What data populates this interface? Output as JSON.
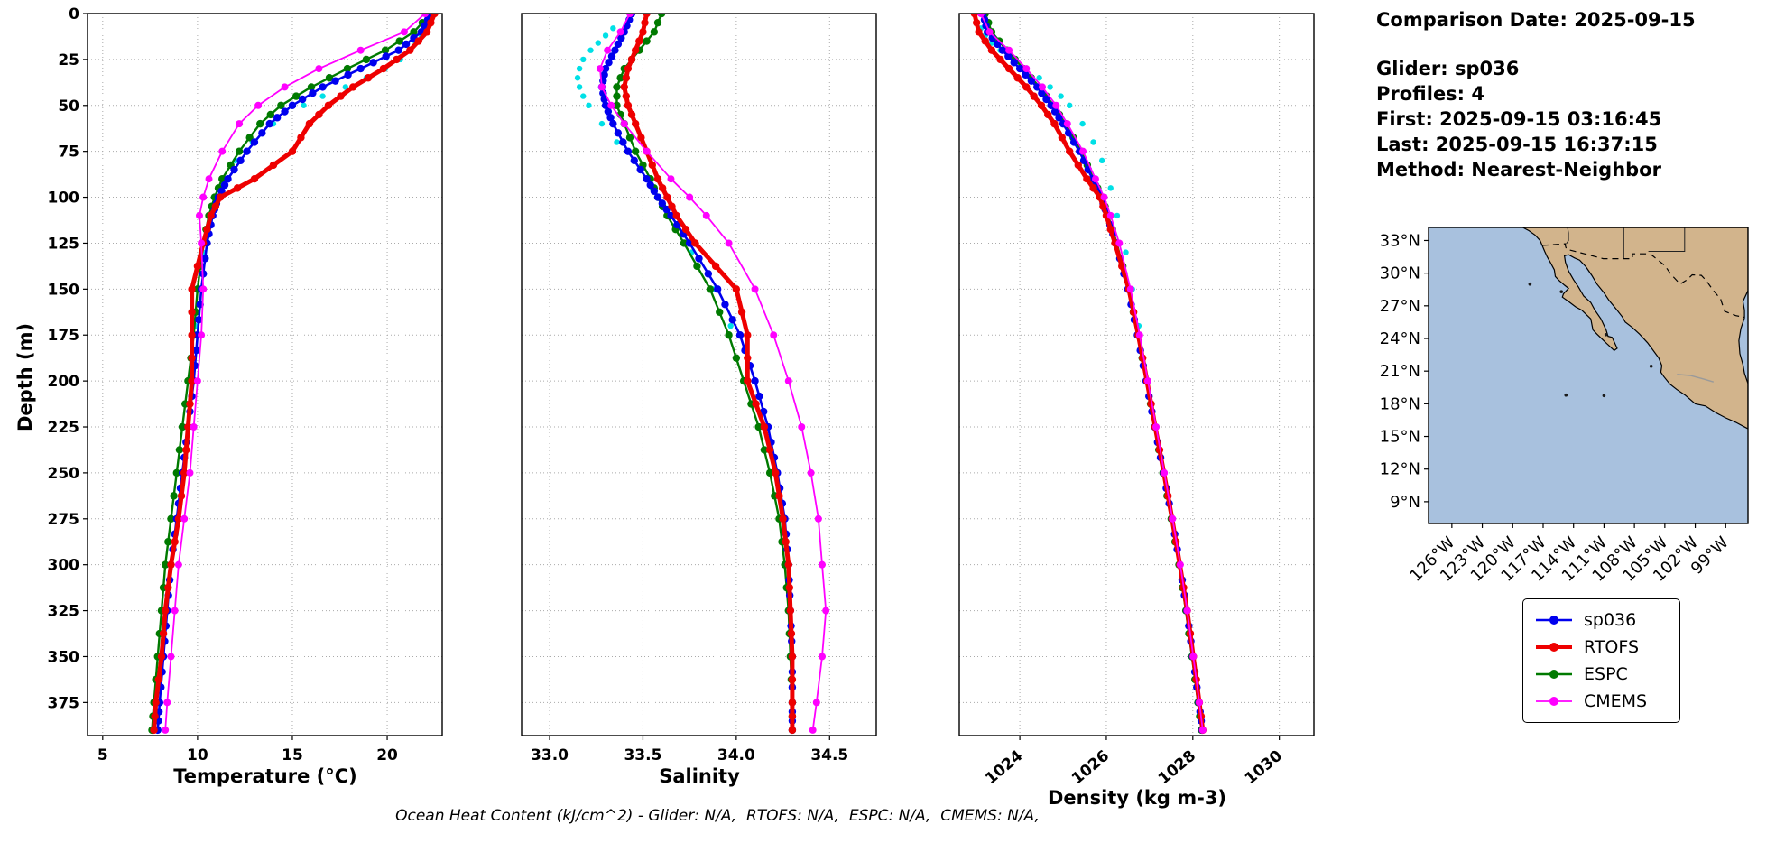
{
  "info_panel": {
    "comparison_date": "Comparison Date: 2025-09-15",
    "glider": "Glider: sp036",
    "profiles": "Profiles: 4",
    "first": "First: 2025-09-15 03:16:45",
    "last": "Last: 2025-09-15 16:37:15",
    "method": "Method: Nearest-Neighbor"
  },
  "footer_note": "Ocean Heat Content (kJ/cm^2) - Glider: N/A,  RTOFS: N/A,  ESPC: N/A,  CMEMS: N/A,",
  "legend": {
    "entries": [
      {
        "label": "sp036",
        "color": "#0000ee"
      },
      {
        "label": "RTOFS",
        "color": "#ee0000"
      },
      {
        "label": "ESPC",
        "color": "#007a00"
      },
      {
        "label": "CMEMS",
        "color": "#ff00ff"
      }
    ]
  },
  "chart_data": {
    "type": "line",
    "ylabel": "Depth (m)",
    "ylim": [
      0,
      393
    ],
    "yticks": [
      0,
      25,
      50,
      75,
      100,
      125,
      150,
      175,
      200,
      225,
      250,
      275,
      300,
      325,
      350,
      375
    ],
    "depths": [
      0,
      10,
      20,
      30,
      40,
      50,
      60,
      75,
      90,
      100,
      110,
      125,
      150,
      175,
      200,
      225,
      250,
      275,
      300,
      325,
      350,
      375,
      390
    ],
    "series_order": [
      "ESPC",
      "sp036",
      "RTOFS",
      "CMEMS"
    ],
    "scatter_color": "#00e0e6",
    "series_styles": {
      "sp036": {
        "color": "#0000ee",
        "width": 2.6,
        "marker": 4.2,
        "subdiv": 3
      },
      "RTOFS": {
        "color": "#ee0000",
        "width": 5.0,
        "marker": 4.2,
        "subdiv": 2
      },
      "ESPC": {
        "color": "#007a00",
        "width": 2.4,
        "marker": 4.2,
        "subdiv": 2
      },
      "CMEMS": {
        "color": "#ff00ff",
        "width": 1.8,
        "marker": 4.0,
        "subdiv": 1
      }
    },
    "panels": [
      {
        "id": "temperature",
        "xlabel": "Temperature (°C)",
        "xlim": [
          4.2,
          22.9
        ],
        "xticks": [
          5,
          10,
          15,
          20
        ],
        "xtick_decimals": 0,
        "rotate_xticks": false,
        "series": {
          "sp036": [
            22.3,
            21.8,
            20.6,
            18.6,
            16.6,
            15.0,
            13.8,
            12.6,
            11.6,
            11.1,
            10.8,
            10.5,
            10.2,
            10.0,
            9.8,
            9.5,
            9.2,
            8.9,
            8.6,
            8.4,
            8.2,
            8.0,
            7.9
          ],
          "RTOFS": [
            22.5,
            22.1,
            21.2,
            19.8,
            18.2,
            16.9,
            15.9,
            15.0,
            13.0,
            11.2,
            10.7,
            10.3,
            9.7,
            9.7,
            9.7,
            9.5,
            9.3,
            9.0,
            8.6,
            8.3,
            8.1,
            7.8,
            7.7
          ],
          "ESPC": [
            22.3,
            21.4,
            19.9,
            17.9,
            16.0,
            14.4,
            13.3,
            12.2,
            11.3,
            10.9,
            10.6,
            10.3,
            10.0,
            9.8,
            9.5,
            9.2,
            8.9,
            8.6,
            8.3,
            8.1,
            7.9,
            7.7,
            7.6
          ],
          "CMEMS": [
            22.0,
            20.9,
            18.6,
            16.4,
            14.6,
            13.2,
            12.2,
            11.3,
            10.6,
            10.3,
            10.1,
            10.2,
            10.3,
            10.2,
            10.0,
            9.8,
            9.6,
            9.3,
            9.0,
            8.8,
            8.6,
            8.4,
            8.3
          ]
        },
        "scatter": {
          "name": "glider-raw",
          "depths": [
            8,
            12,
            16,
            20,
            25,
            30,
            35,
            40,
            45,
            50,
            60,
            70,
            80,
            95,
            110,
            130,
            150,
            170
          ],
          "values": [
            22.0,
            21.8,
            21.5,
            21.2,
            20.7,
            19.9,
            18.9,
            17.8,
            16.6,
            15.6,
            14.0,
            12.9,
            12.0,
            11.2,
            10.7,
            10.3,
            10.1,
            9.9
          ]
        }
      },
      {
        "id": "salinity",
        "xlabel": "Salinity",
        "xlim": [
          32.85,
          34.75
        ],
        "xticks": [
          33.0,
          33.5,
          34.0,
          34.5
        ],
        "xtick_decimals": 1,
        "rotate_xticks": false,
        "series": {
          "sp036": [
            33.44,
            33.4,
            33.35,
            33.3,
            33.28,
            33.3,
            33.34,
            33.42,
            33.52,
            33.58,
            33.65,
            33.75,
            33.9,
            34.02,
            34.1,
            34.17,
            34.22,
            34.26,
            34.28,
            34.29,
            34.3,
            34.3,
            34.3
          ],
          "RTOFS": [
            33.52,
            33.5,
            33.46,
            33.42,
            33.4,
            33.42,
            33.46,
            33.52,
            33.58,
            33.63,
            33.68,
            33.78,
            34.0,
            34.06,
            34.06,
            34.15,
            34.21,
            34.25,
            34.28,
            34.29,
            34.3,
            34.3,
            34.3
          ],
          "ESPC": [
            33.6,
            33.56,
            33.48,
            33.4,
            33.36,
            33.36,
            33.4,
            33.46,
            33.54,
            33.58,
            33.63,
            33.72,
            33.86,
            33.96,
            34.04,
            34.12,
            34.18,
            34.23,
            34.26,
            34.28,
            34.29,
            34.3,
            34.3
          ],
          "CMEMS": [
            33.43,
            33.38,
            33.31,
            33.27,
            33.28,
            33.33,
            33.4,
            33.52,
            33.65,
            33.75,
            33.84,
            33.96,
            34.1,
            34.2,
            34.28,
            34.35,
            34.4,
            34.44,
            34.46,
            34.48,
            34.46,
            34.43,
            34.41
          ]
        },
        "scatter": {
          "name": "glider-raw",
          "depths": [
            8,
            12,
            16,
            20,
            25,
            30,
            35,
            40,
            45,
            50,
            60,
            70,
            80,
            95,
            110,
            130,
            150,
            170
          ],
          "values": [
            33.34,
            33.3,
            33.26,
            33.22,
            33.18,
            33.16,
            33.15,
            33.16,
            33.18,
            33.21,
            33.28,
            33.36,
            33.45,
            33.55,
            33.64,
            33.76,
            33.88,
            33.97
          ]
        }
      },
      {
        "id": "density",
        "xlabel": "Density (kg m-3)",
        "xlim": [
          1022.6,
          1030.8
        ],
        "xticks": [
          1024,
          1026,
          1028,
          1030
        ],
        "xtick_decimals": 0,
        "rotate_xticks": true,
        "series": {
          "sp036": [
            1023.15,
            1023.25,
            1023.6,
            1024.0,
            1024.4,
            1024.72,
            1025.0,
            1025.38,
            1025.68,
            1025.88,
            1026.02,
            1026.22,
            1026.5,
            1026.72,
            1026.92,
            1027.12,
            1027.32,
            1027.52,
            1027.7,
            1027.86,
            1028.0,
            1028.14,
            1028.22
          ],
          "RTOFS": [
            1022.95,
            1023.05,
            1023.35,
            1023.75,
            1024.15,
            1024.5,
            1024.8,
            1025.15,
            1025.55,
            1025.85,
            1026.0,
            1026.2,
            1026.52,
            1026.74,
            1026.94,
            1027.13,
            1027.33,
            1027.52,
            1027.7,
            1027.87,
            1028.01,
            1028.15,
            1028.23
          ],
          "ESPC": [
            1023.2,
            1023.35,
            1023.7,
            1024.08,
            1024.45,
            1024.78,
            1025.05,
            1025.42,
            1025.7,
            1025.9,
            1026.04,
            1026.24,
            1026.52,
            1026.73,
            1026.93,
            1027.12,
            1027.31,
            1027.5,
            1027.68,
            1027.84,
            1027.98,
            1028.12,
            1028.2
          ],
          "CMEMS": [
            1023.1,
            1023.3,
            1023.75,
            1024.15,
            1024.52,
            1024.84,
            1025.1,
            1025.46,
            1025.75,
            1025.95,
            1026.1,
            1026.3,
            1026.56,
            1026.77,
            1026.96,
            1027.15,
            1027.34,
            1027.53,
            1027.71,
            1027.87,
            1028.01,
            1028.15,
            1028.23
          ]
        },
        "scatter": {
          "name": "glider-raw",
          "depths": [
            8,
            12,
            16,
            20,
            25,
            30,
            35,
            40,
            45,
            50,
            60,
            70,
            80,
            95,
            110,
            130,
            150,
            170
          ],
          "values": [
            1023.1,
            1023.2,
            1023.35,
            1023.55,
            1023.85,
            1024.15,
            1024.45,
            1024.7,
            1024.95,
            1025.15,
            1025.45,
            1025.7,
            1025.9,
            1026.1,
            1026.25,
            1026.45,
            1026.6,
            1026.75
          ]
        }
      }
    ],
    "map": {
      "ocean_color": "#a8c1de",
      "land_color": "#d2b48c",
      "lon_range": [
        128.3,
        96.8
      ],
      "lat_range": [
        7.0,
        34.2
      ],
      "lat_ticks": [
        33,
        30,
        27,
        24,
        21,
        18,
        15,
        12,
        9
      ],
      "lat_tick_labels": [
        "33°N",
        "30°N",
        "27°N",
        "24°N",
        "21°N",
        "18°N",
        "15°N",
        "12°N",
        "9°N"
      ],
      "lon_ticks": [
        126,
        123,
        120,
        117,
        114,
        111,
        108,
        105,
        102,
        99
      ],
      "lon_tick_labels": [
        "126°W",
        "123°W",
        "120°W",
        "117°W",
        "114°W",
        "111°W",
        "108°W",
        "105°W",
        "102°W",
        "99°W"
      ],
      "land": [
        [
          119.0,
          34.2
        ],
        [
          118.4,
          33.9
        ],
        [
          117.8,
          33.5
        ],
        [
          117.3,
          33.0
        ],
        [
          117.1,
          32.55
        ],
        [
          116.85,
          32.0
        ],
        [
          116.6,
          31.5
        ],
        [
          116.3,
          31.0
        ],
        [
          115.9,
          30.3
        ],
        [
          115.8,
          29.7
        ],
        [
          115.4,
          29.3
        ],
        [
          114.9,
          28.9
        ],
        [
          114.5,
          28.6
        ],
        [
          115.0,
          28.1
        ],
        [
          115.1,
          27.8
        ],
        [
          114.5,
          27.4
        ],
        [
          113.8,
          26.9
        ],
        [
          113.2,
          26.6
        ],
        [
          112.3,
          25.8
        ],
        [
          112.1,
          24.8
        ],
        [
          111.7,
          24.4
        ],
        [
          110.7,
          23.5
        ],
        [
          110.0,
          22.9
        ],
        [
          109.7,
          23.1
        ],
        [
          110.2,
          24.1
        ],
        [
          110.6,
          24.2
        ],
        [
          110.8,
          24.8
        ],
        [
          111.3,
          25.8
        ],
        [
          111.9,
          26.6
        ],
        [
          112.3,
          27.3
        ],
        [
          113.0,
          27.9
        ],
        [
          113.5,
          28.7
        ],
        [
          114.0,
          29.4
        ],
        [
          114.5,
          30.2
        ],
        [
          114.8,
          31.0
        ],
        [
          114.9,
          31.6
        ],
        [
          114.5,
          31.7
        ],
        [
          113.9,
          31.4
        ],
        [
          113.4,
          31.2
        ],
        [
          112.8,
          30.6
        ],
        [
          112.2,
          29.8
        ],
        [
          111.7,
          29.0
        ],
        [
          111.0,
          28.2
        ],
        [
          110.5,
          27.5
        ],
        [
          109.8,
          26.7
        ],
        [
          109.2,
          26.0
        ],
        [
          108.9,
          25.5
        ],
        [
          108.2,
          25.0
        ],
        [
          107.5,
          24.4
        ],
        [
          106.7,
          23.6
        ],
        [
          106.3,
          23.1
        ],
        [
          105.6,
          22.2
        ],
        [
          105.3,
          21.5
        ],
        [
          105.4,
          20.9
        ],
        [
          105.1,
          20.5
        ],
        [
          104.5,
          19.8
        ],
        [
          103.8,
          19.3
        ],
        [
          103.0,
          18.8
        ],
        [
          102.0,
          18.0
        ],
        [
          101.0,
          17.8
        ],
        [
          100.0,
          17.2
        ],
        [
          99.0,
          16.7
        ],
        [
          98.0,
          16.3
        ],
        [
          97.2,
          15.9
        ],
        [
          96.8,
          15.7
        ],
        [
          96.8,
          19.85
        ],
        [
          97.15,
          20.8
        ],
        [
          97.3,
          21.6
        ],
        [
          97.6,
          22.6
        ],
        [
          97.7,
          23.8
        ],
        [
          97.5,
          24.9
        ],
        [
          97.15,
          25.9
        ],
        [
          97.15,
          26.6
        ],
        [
          97.3,
          27.4
        ],
        [
          96.8,
          28.4
        ],
        [
          96.8,
          34.2
        ]
      ],
      "border": [
        [
          117.1,
          32.55
        ],
        [
          116.2,
          32.6
        ],
        [
          114.8,
          32.7
        ],
        [
          114.8,
          32.5
        ],
        [
          114.7,
          32.2
        ],
        [
          113.0,
          31.8
        ],
        [
          111.07,
          31.33
        ],
        [
          108.2,
          31.33
        ],
        [
          108.2,
          31.78
        ],
        [
          106.5,
          31.78
        ],
        [
          106.2,
          31.6
        ],
        [
          105.0,
          30.7
        ],
        [
          104.4,
          29.9
        ],
        [
          103.5,
          29.0
        ],
        [
          102.8,
          29.4
        ],
        [
          102.3,
          29.85
        ],
        [
          101.4,
          29.8
        ],
        [
          100.9,
          29.3
        ],
        [
          100.3,
          28.5
        ],
        [
          99.5,
          27.6
        ],
        [
          99.1,
          26.5
        ],
        [
          98.0,
          26.1
        ],
        [
          97.15,
          25.95
        ]
      ],
      "state_lines": [
        [
          [
            114.6,
            34.2
          ],
          [
            114.5,
            33.7
          ],
          [
            114.5,
            33.0
          ],
          [
            114.7,
            32.72
          ]
        ],
        [
          [
            109.05,
            34.2
          ],
          [
            109.05,
            31.33
          ]
        ],
        [
          [
            103.05,
            34.2
          ],
          [
            103.05,
            32.0
          ],
          [
            106.62,
            32.0
          ]
        ]
      ],
      "rivers": [
        [
          [
            103.8,
            20.7
          ],
          [
            102.5,
            20.6
          ],
          [
            101.3,
            20.3
          ],
          [
            100.2,
            20.0
          ]
        ]
      ],
      "islands": [
        [
          118.3,
          29.0
        ],
        [
          115.2,
          28.3
        ],
        [
          111.0,
          18.75
        ],
        [
          114.75,
          18.8
        ],
        [
          106.35,
          21.45
        ],
        [
          110.8,
          24.35
        ]
      ]
    }
  }
}
